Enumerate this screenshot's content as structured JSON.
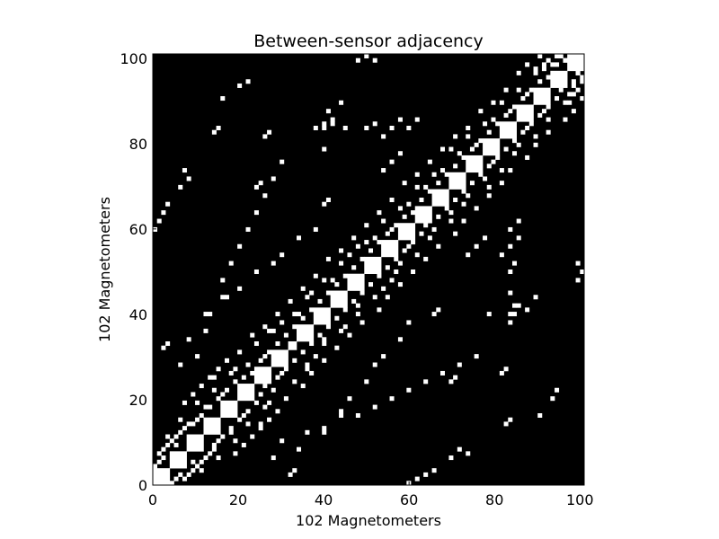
{
  "chart_data": {
    "type": "heatmap",
    "title": "Between-sensor adjacency",
    "xlabel": "102 Magnetometers",
    "ylabel": "102 Magnetometers",
    "n": 102,
    "xlim": [
      0,
      101
    ],
    "ylim": [
      0,
      101
    ],
    "xticks": [
      0,
      20,
      40,
      60,
      80,
      100
    ],
    "yticks": [
      0,
      20,
      40,
      60,
      80,
      100
    ],
    "grid": false,
    "colors": {
      "off": "#000000",
      "on": "#ffffff"
    },
    "diagonal_blocks": [
      [
        0,
        4
      ],
      [
        4,
        8
      ],
      [
        8,
        12
      ],
      [
        12,
        16
      ],
      [
        16,
        20
      ],
      [
        20,
        24
      ],
      [
        24,
        28
      ],
      [
        28,
        32
      ],
      [
        32,
        34
      ],
      [
        34,
        38
      ],
      [
        38,
        42
      ],
      [
        42,
        46
      ],
      [
        46,
        50
      ],
      [
        50,
        54
      ],
      [
        54,
        58
      ],
      [
        58,
        62
      ],
      [
        62,
        66
      ],
      [
        66,
        70
      ],
      [
        70,
        74
      ],
      [
        74,
        78
      ],
      [
        78,
        82
      ],
      [
        82,
        86
      ],
      [
        86,
        90
      ],
      [
        90,
        94
      ],
      [
        94,
        98
      ],
      [
        98,
        102
      ]
    ],
    "off_diagonal_cells": [
      [
        0,
        4
      ],
      [
        1,
        5
      ],
      [
        1,
        7
      ],
      [
        2,
        8
      ],
      [
        3,
        9
      ],
      [
        4,
        10
      ],
      [
        5,
        11
      ],
      [
        6,
        12
      ],
      [
        7,
        13
      ],
      [
        9,
        14
      ],
      [
        10,
        15
      ],
      [
        11,
        16
      ],
      [
        13,
        18
      ],
      [
        15,
        20
      ],
      [
        16,
        21
      ],
      [
        17,
        22
      ],
      [
        19,
        24
      ],
      [
        21,
        25
      ],
      [
        23,
        26
      ],
      [
        25,
        29
      ],
      [
        27,
        31
      ],
      [
        29,
        33
      ],
      [
        31,
        35
      ],
      [
        33,
        37
      ],
      [
        35,
        39
      ],
      [
        37,
        41
      ],
      [
        39,
        43
      ],
      [
        41,
        45
      ],
      [
        43,
        47
      ],
      [
        45,
        49
      ],
      [
        47,
        51
      ],
      [
        49,
        53
      ],
      [
        51,
        55
      ],
      [
        53,
        57
      ],
      [
        55,
        59
      ],
      [
        57,
        61
      ],
      [
        59,
        63
      ],
      [
        61,
        64
      ],
      [
        63,
        67
      ],
      [
        65,
        69
      ],
      [
        67,
        71
      ],
      [
        69,
        73
      ],
      [
        71,
        75
      ],
      [
        73,
        77
      ],
      [
        75,
        79
      ],
      [
        77,
        81
      ],
      [
        79,
        83
      ],
      [
        81,
        85
      ],
      [
        83,
        87
      ],
      [
        85,
        89
      ],
      [
        87,
        91
      ],
      [
        89,
        93
      ],
      [
        91,
        95
      ],
      [
        93,
        96
      ],
      [
        95,
        99
      ],
      [
        97,
        100
      ],
      [
        0,
        2
      ],
      [
        2,
        6
      ],
      [
        5,
        9
      ],
      [
        8,
        14
      ],
      [
        12,
        18
      ],
      [
        14,
        22
      ],
      [
        18,
        26
      ],
      [
        22,
        28
      ],
      [
        26,
        30
      ],
      [
        28,
        36
      ],
      [
        30,
        38
      ],
      [
        34,
        40
      ],
      [
        36,
        44
      ],
      [
        40,
        48
      ],
      [
        44,
        52
      ],
      [
        48,
        56
      ],
      [
        52,
        58
      ],
      [
        56,
        60
      ],
      [
        60,
        66
      ],
      [
        64,
        70
      ],
      [
        68,
        74
      ],
      [
        72,
        78
      ],
      [
        76,
        80
      ],
      [
        80,
        86
      ],
      [
        84,
        88
      ],
      [
        88,
        92
      ],
      [
        92,
        98
      ],
      [
        3,
        11
      ],
      [
        6,
        15
      ],
      [
        10,
        19
      ],
      [
        14,
        25
      ],
      [
        19,
        27
      ],
      [
        24,
        33
      ],
      [
        27,
        36
      ],
      [
        33,
        40
      ],
      [
        37,
        45
      ],
      [
        42,
        48
      ],
      [
        46,
        54
      ],
      [
        50,
        57
      ],
      [
        54,
        62
      ],
      [
        58,
        65
      ],
      [
        62,
        70
      ],
      [
        66,
        73
      ],
      [
        70,
        79
      ],
      [
        74,
        82
      ],
      [
        78,
        85
      ],
      [
        82,
        90
      ],
      [
        86,
        93
      ],
      [
        90,
        97
      ],
      [
        7,
        19
      ],
      [
        9,
        21
      ],
      [
        11,
        23
      ],
      [
        13,
        25
      ],
      [
        15,
        27
      ],
      [
        17,
        29
      ],
      [
        20,
        31
      ],
      [
        23,
        35
      ],
      [
        26,
        37
      ],
      [
        29,
        40
      ],
      [
        32,
        43
      ],
      [
        35,
        46
      ],
      [
        38,
        49
      ],
      [
        41,
        53
      ],
      [
        44,
        55
      ],
      [
        47,
        58
      ],
      [
        50,
        61
      ],
      [
        53,
        64
      ],
      [
        56,
        67
      ],
      [
        59,
        71
      ],
      [
        62,
        73
      ],
      [
        65,
        76
      ],
      [
        68,
        79
      ],
      [
        71,
        82
      ],
      [
        74,
        84
      ],
      [
        77,
        88
      ],
      [
        80,
        90
      ],
      [
        83,
        93
      ],
      [
        86,
        97
      ],
      [
        2,
        32
      ],
      [
        3,
        33
      ],
      [
        8,
        34
      ],
      [
        12,
        40
      ],
      [
        16,
        44
      ],
      [
        20,
        46
      ],
      [
        24,
        50
      ],
      [
        28,
        52
      ],
      [
        30,
        54
      ],
      [
        34,
        58
      ],
      [
        38,
        60
      ],
      [
        6,
        28
      ],
      [
        10,
        30
      ],
      [
        0,
        60
      ],
      [
        1,
        62
      ],
      [
        2,
        64
      ],
      [
        3,
        66
      ],
      [
        6,
        70
      ],
      [
        8,
        72
      ],
      [
        7,
        74
      ],
      [
        14,
        83
      ],
      [
        15,
        84
      ],
      [
        26,
        82
      ],
      [
        27,
        83
      ],
      [
        24,
        70
      ],
      [
        25,
        71
      ],
      [
        16,
        91
      ],
      [
        20,
        94
      ],
      [
        22,
        95
      ],
      [
        38,
        84
      ],
      [
        40,
        85
      ],
      [
        40,
        66
      ],
      [
        41,
        67
      ],
      [
        54,
        74
      ],
      [
        56,
        76
      ],
      [
        58,
        78
      ],
      [
        84,
        40
      ],
      [
        86,
        42
      ],
      [
        90,
        44
      ],
      [
        84,
        45
      ],
      [
        88,
        41
      ],
      [
        85,
        42
      ],
      [
        79,
        40
      ],
      [
        36,
        12
      ],
      [
        40,
        13
      ],
      [
        44,
        17
      ],
      [
        48,
        16
      ],
      [
        52,
        18
      ],
      [
        56,
        20
      ],
      [
        60,
        22
      ],
      [
        64,
        24
      ],
      [
        68,
        26
      ],
      [
        72,
        28
      ],
      [
        76,
        30
      ],
      [
        91,
        101
      ],
      [
        93,
        100
      ],
      [
        95,
        101
      ],
      [
        97,
        100
      ],
      [
        99,
        101
      ],
      [
        88,
        99
      ],
      [
        90,
        98
      ],
      [
        92,
        99
      ],
      [
        94,
        99
      ],
      [
        96,
        101
      ],
      [
        50,
        84
      ],
      [
        52,
        85
      ],
      [
        54,
        82
      ],
      [
        56,
        84
      ],
      [
        58,
        86
      ],
      [
        60,
        84
      ],
      [
        62,
        86
      ],
      [
        48,
        100
      ],
      [
        50,
        101
      ],
      [
        52,
        100
      ]
    ]
  }
}
